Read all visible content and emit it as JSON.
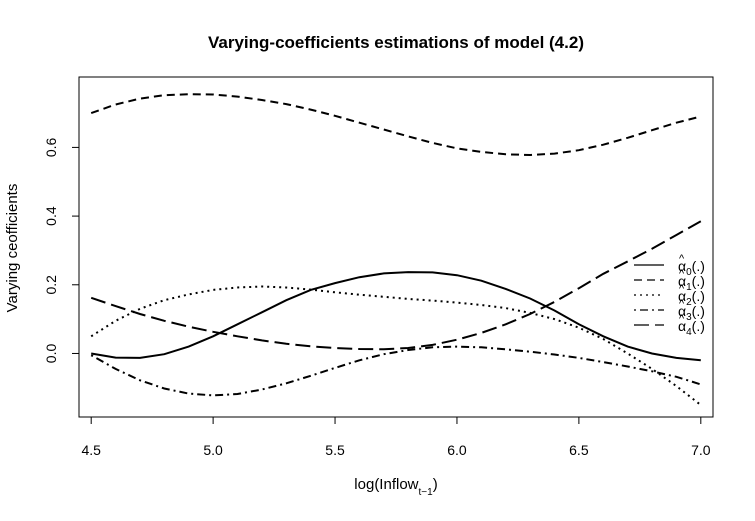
{
  "chart_data": {
    "type": "line",
    "title": "Varying-coefficients estimations of model (4.2)",
    "xlabel": {
      "base": "log(Inflow",
      "sub": "t−1",
      "tail": ")"
    },
    "ylabel": "Varying ceofficients",
    "xlim": [
      4.45,
      7.05
    ],
    "ylim": [
      -0.185,
      0.805
    ],
    "xticks": [
      4.5,
      5.0,
      5.5,
      6.0,
      6.5,
      7.0
    ],
    "xtick_labels": [
      "4.5",
      "5.0",
      "5.5",
      "6.0",
      "6.5",
      "7.0"
    ],
    "yticks": [
      0.0,
      0.2,
      0.4,
      0.6
    ],
    "ytick_labels": [
      "0.0",
      "0.2",
      "0.4",
      "0.6"
    ],
    "grid": false,
    "legend_position": "right",
    "x": [
      4.5,
      4.6,
      4.7,
      4.8,
      4.9,
      5.0,
      5.1,
      5.2,
      5.3,
      5.4,
      5.5,
      5.6,
      5.7,
      5.8,
      5.9,
      6.0,
      6.1,
      6.2,
      6.3,
      6.4,
      6.5,
      6.6,
      6.7,
      6.8,
      6.9,
      7.0
    ],
    "series": [
      {
        "legend_sub": "0",
        "dash": "solid",
        "values": [
          0.0,
          -0.012,
          -0.013,
          -0.002,
          0.02,
          0.05,
          0.085,
          0.12,
          0.155,
          0.185,
          0.205,
          0.222,
          0.233,
          0.237,
          0.236,
          0.228,
          0.212,
          0.188,
          0.16,
          0.125,
          0.085,
          0.05,
          0.02,
          0.0,
          -0.013,
          -0.02
        ]
      },
      {
        "legend_sub": "1",
        "dash": "dashed",
        "values": [
          0.7,
          0.725,
          0.742,
          0.752,
          0.755,
          0.754,
          0.748,
          0.738,
          0.726,
          0.71,
          0.692,
          0.672,
          0.652,
          0.632,
          0.613,
          0.597,
          0.587,
          0.58,
          0.578,
          0.582,
          0.592,
          0.608,
          0.628,
          0.65,
          0.672,
          0.69
        ]
      },
      {
        "legend_sub": "2",
        "dash": "dotted",
        "values": [
          0.05,
          0.095,
          0.13,
          0.155,
          0.172,
          0.185,
          0.192,
          0.195,
          0.192,
          0.186,
          0.178,
          0.171,
          0.165,
          0.159,
          0.154,
          0.148,
          0.141,
          0.132,
          0.118,
          0.1,
          0.075,
          0.042,
          0.0,
          -0.045,
          -0.095,
          -0.15
        ]
      },
      {
        "legend_sub": "3",
        "dash": "dotdash",
        "values": [
          -0.005,
          -0.045,
          -0.078,
          -0.102,
          -0.117,
          -0.122,
          -0.118,
          -0.105,
          -0.087,
          -0.065,
          -0.042,
          -0.02,
          -0.002,
          0.01,
          0.018,
          0.02,
          0.018,
          0.012,
          0.005,
          -0.003,
          -0.013,
          -0.025,
          -0.038,
          -0.052,
          -0.068,
          -0.09
        ]
      },
      {
        "legend_sub": "4",
        "dash": "longdash",
        "values": [
          0.162,
          0.138,
          0.115,
          0.095,
          0.078,
          0.063,
          0.05,
          0.038,
          0.028,
          0.021,
          0.016,
          0.013,
          0.012,
          0.016,
          0.025,
          0.04,
          0.06,
          0.085,
          0.115,
          0.15,
          0.19,
          0.232,
          0.268,
          0.305,
          0.345,
          0.385
        ]
      }
    ]
  }
}
